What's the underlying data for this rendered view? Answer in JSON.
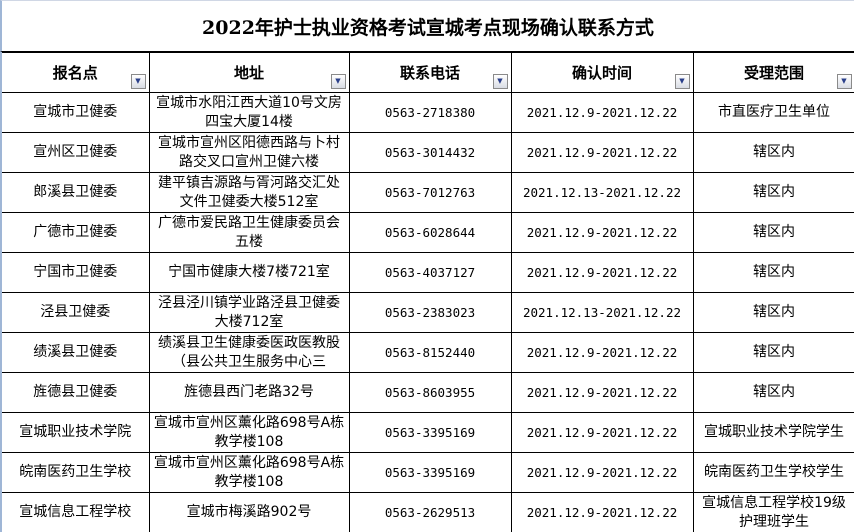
{
  "title": "2022年护士执业资格考试宣城考点现场确认联系方式",
  "headers": [
    "报名点",
    "地址",
    "联系电话",
    "确认时间",
    "受理范围"
  ],
  "filter_icon": "dropdown-arrow-icon",
  "rows": [
    [
      "宣城市卫健委",
      "宣城市水阳江西大道10号文房四宝大厦14楼",
      "0563-2718380",
      "2021.12.9-2021.12.22",
      "市直医疗卫生单位"
    ],
    [
      "宣州区卫健委",
      "宣城市宣州区阳德西路与卜村路交叉口宣州卫健六楼",
      "0563-3014432",
      "2021.12.9-2021.12.22",
      "辖区内"
    ],
    [
      "郎溪县卫健委",
      "建平镇吉源路与胥河路交汇处文件卫健委大楼512室",
      "0563-7012763",
      "2021.12.13-2021.12.22",
      "辖区内"
    ],
    [
      "广德市卫健委",
      "广德市爱民路卫生健康委员会五楼",
      "0563-6028644",
      "2021.12.9-2021.12.22",
      "辖区内"
    ],
    [
      "宁国市卫健委",
      "宁国市健康大楼7楼721室",
      "0563-4037127",
      "2021.12.9-2021.12.22",
      "辖区内"
    ],
    [
      "泾县卫健委",
      "泾县泾川镇学业路泾县卫健委大楼712室",
      "0563-2383023",
      "2021.12.13-2021.12.22",
      "辖区内"
    ],
    [
      "绩溪县卫健委",
      "绩溪县卫生健康委医政医教股（县公共卫生服务中心三",
      "0563-8152440",
      "2021.12.9-2021.12.22",
      "辖区内"
    ],
    [
      "旌德县卫健委",
      "旌德县西门老路32号",
      "0563-8603955",
      "2021.12.9-2021.12.22",
      "辖区内"
    ],
    [
      "宣城职业技术学院",
      "宣城市宣州区薰化路698号A栋教学楼108",
      "0563-3395169",
      "2021.12.9-2021.12.22",
      "宣城职业技术学院学生"
    ],
    [
      "皖南医药卫生学校",
      "宣城市宣州区薰化路698号A栋教学楼108",
      "0563-3395169",
      "2021.12.9-2021.12.22",
      "皖南医药卫生学校学生"
    ],
    [
      "宣城信息工程学校",
      "宣城市梅溪路902号",
      "0563-2629513",
      "2021.12.9-2021.12.22",
      "宣城信息工程学校19级护理班学生"
    ]
  ]
}
